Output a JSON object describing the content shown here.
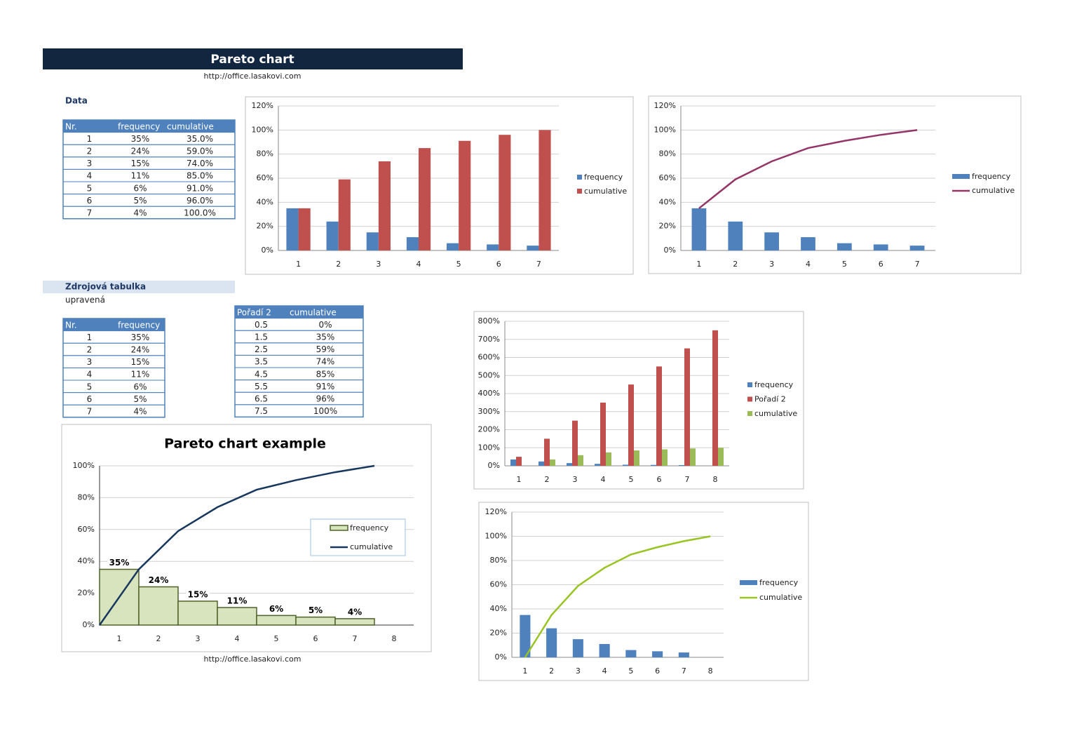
{
  "header": {
    "title": "Pareto chart",
    "url": "http://office.lasakovi.com"
  },
  "data_section": {
    "label": "Data",
    "table": {
      "columns": [
        "Nr.",
        "frequency",
        "cumulative"
      ],
      "rows": [
        [
          "1",
          "35%",
          "35.0%"
        ],
        [
          "2",
          "24%",
          "59.0%"
        ],
        [
          "3",
          "15%",
          "74.0%"
        ],
        [
          "4",
          "11%",
          "85.0%"
        ],
        [
          "5",
          "6%",
          "91.0%"
        ],
        [
          "6",
          "5%",
          "96.0%"
        ],
        [
          "7",
          "4%",
          "100.0%"
        ]
      ]
    }
  },
  "source_section": {
    "label": "Zdrojová tabulka",
    "note": "upravená",
    "table": {
      "columns": [
        "Nr.",
        "frequency"
      ],
      "rows": [
        [
          "1",
          "35%"
        ],
        [
          "2",
          "24%"
        ],
        [
          "3",
          "15%"
        ],
        [
          "4",
          "11%"
        ],
        [
          "5",
          "6%"
        ],
        [
          "6",
          "5%"
        ],
        [
          "7",
          "4%"
        ]
      ]
    },
    "table2": {
      "columns": [
        "Pořadí 2",
        "cumulative"
      ],
      "rows": [
        [
          "0.5",
          "0%"
        ],
        [
          "1.5",
          "35%"
        ],
        [
          "2.5",
          "59%"
        ],
        [
          "3.5",
          "74%"
        ],
        [
          "4.5",
          "85%"
        ],
        [
          "5.5",
          "91%"
        ],
        [
          "6.5",
          "96%"
        ],
        [
          "7.5",
          "100%"
        ]
      ]
    }
  },
  "footer": {
    "url": "http://office.lasakovi.com"
  },
  "chart_data": [
    {
      "type": "bar",
      "categories": [
        "1",
        "2",
        "3",
        "4",
        "5",
        "6",
        "7"
      ],
      "series": [
        {
          "name": "frequency",
          "color": "#4f81bd",
          "values": [
            35,
            24,
            15,
            11,
            6,
            5,
            4
          ]
        },
        {
          "name": "cumulative",
          "color": "#c0504d",
          "values": [
            35,
            59,
            74,
            85,
            91,
            96,
            100
          ]
        }
      ],
      "ylim": [
        0,
        120
      ],
      "yticks": [
        {
          "value": 0,
          "label": "0%"
        },
        {
          "value": 20,
          "label": "20%"
        },
        {
          "value": 40,
          "label": "40%"
        },
        {
          "value": 60,
          "label": "60%"
        },
        {
          "value": 80,
          "label": "80%"
        },
        {
          "value": 100,
          "label": "100%"
        },
        {
          "value": 120,
          "label": "120%"
        }
      ],
      "grid": true,
      "legend": "right"
    },
    {
      "type": "combo",
      "categories": [
        "1",
        "2",
        "3",
        "4",
        "5",
        "6",
        "7"
      ],
      "series": [
        {
          "name": "frequency",
          "type": "bar",
          "color": "#4f81bd",
          "values": [
            35,
            24,
            15,
            11,
            6,
            5,
            4
          ]
        },
        {
          "name": "cumulative",
          "type": "line",
          "color": "#953567",
          "values": [
            35,
            59,
            74,
            85,
            91,
            96,
            100
          ]
        }
      ],
      "ylim": [
        0,
        120
      ],
      "yticks": [
        {
          "value": 0,
          "label": "0%"
        },
        {
          "value": 20,
          "label": "20%"
        },
        {
          "value": 40,
          "label": "40%"
        },
        {
          "value": 60,
          "label": "60%"
        },
        {
          "value": 80,
          "label": "80%"
        },
        {
          "value": 100,
          "label": "100%"
        },
        {
          "value": 120,
          "label": "120%"
        }
      ],
      "grid": true,
      "legend": "right"
    },
    {
      "type": "bar",
      "categories": [
        "1",
        "2",
        "3",
        "4",
        "5",
        "6",
        "7",
        "8"
      ],
      "series": [
        {
          "name": "frequency",
          "color": "#4f81bd",
          "values": [
            35,
            24,
            15,
            11,
            6,
            5,
            4,
            null
          ]
        },
        {
          "name": "Pořadí 2",
          "color": "#c0504d",
          "values": [
            50,
            150,
            250,
            350,
            450,
            550,
            650,
            750
          ]
        },
        {
          "name": "cumulative",
          "color": "#9bbb59",
          "values": [
            0,
            35,
            59,
            74,
            85,
            91,
            96,
            100
          ]
        }
      ],
      "ylim": [
        0,
        800
      ],
      "yticks": [
        {
          "value": 0,
          "label": "0%"
        },
        {
          "value": 100,
          "label": "100%"
        },
        {
          "value": 200,
          "label": "200%"
        },
        {
          "value": 300,
          "label": "300%"
        },
        {
          "value": 400,
          "label": "400%"
        },
        {
          "value": 500,
          "label": "500%"
        },
        {
          "value": 600,
          "label": "600%"
        },
        {
          "value": 700,
          "label": "700%"
        },
        {
          "value": 800,
          "label": "800%"
        }
      ],
      "grid": true,
      "legend": "right"
    },
    {
      "type": "combo",
      "categories": [
        "1",
        "2",
        "3",
        "4",
        "5",
        "6",
        "7",
        "8"
      ],
      "series": [
        {
          "name": "frequency",
          "type": "bar",
          "color": "#4f81bd",
          "values": [
            35,
            24,
            15,
            11,
            6,
            5,
            4,
            null
          ]
        },
        {
          "name": "cumulative",
          "type": "line",
          "color": "#99c424",
          "values": [
            0,
            35,
            59,
            74,
            85,
            91,
            96,
            100
          ]
        }
      ],
      "ylim": [
        0,
        120
      ],
      "yticks": [
        {
          "value": 0,
          "label": "0%"
        },
        {
          "value": 20,
          "label": "20%"
        },
        {
          "value": 40,
          "label": "40%"
        },
        {
          "value": 60,
          "label": "60%"
        },
        {
          "value": 80,
          "label": "80%"
        },
        {
          "value": 100,
          "label": "100%"
        },
        {
          "value": 120,
          "label": "120%"
        }
      ],
      "grid": true,
      "legend": "right"
    },
    {
      "type": "pareto",
      "title": "Pareto chart  example",
      "categories": [
        "1",
        "2",
        "3",
        "4",
        "5",
        "6",
        "7",
        "8"
      ],
      "series": [
        {
          "name": "frequency",
          "type": "bar",
          "color": "#d7e4bd",
          "edgecolor": "#4f6228",
          "values": [
            35,
            24,
            15,
            11,
            6,
            5,
            4,
            null
          ],
          "value_labels": [
            "35%",
            "24%",
            "15%",
            "11%",
            "6%",
            "5%",
            "4%",
            null
          ]
        },
        {
          "name": "cumulative",
          "type": "line",
          "color": "#17375e",
          "values": [
            0,
            35,
            59,
            74,
            85,
            91,
            96,
            100
          ]
        }
      ],
      "ylim": [
        0,
        100
      ],
      "yticks": [
        {
          "value": 0,
          "label": "0%"
        },
        {
          "value": 20,
          "label": "20%"
        },
        {
          "value": 40,
          "label": "40%"
        },
        {
          "value": 60,
          "label": "60%"
        },
        {
          "value": 80,
          "label": "80%"
        },
        {
          "value": 100,
          "label": "100%"
        }
      ],
      "grid": true,
      "legend": "inside"
    }
  ]
}
